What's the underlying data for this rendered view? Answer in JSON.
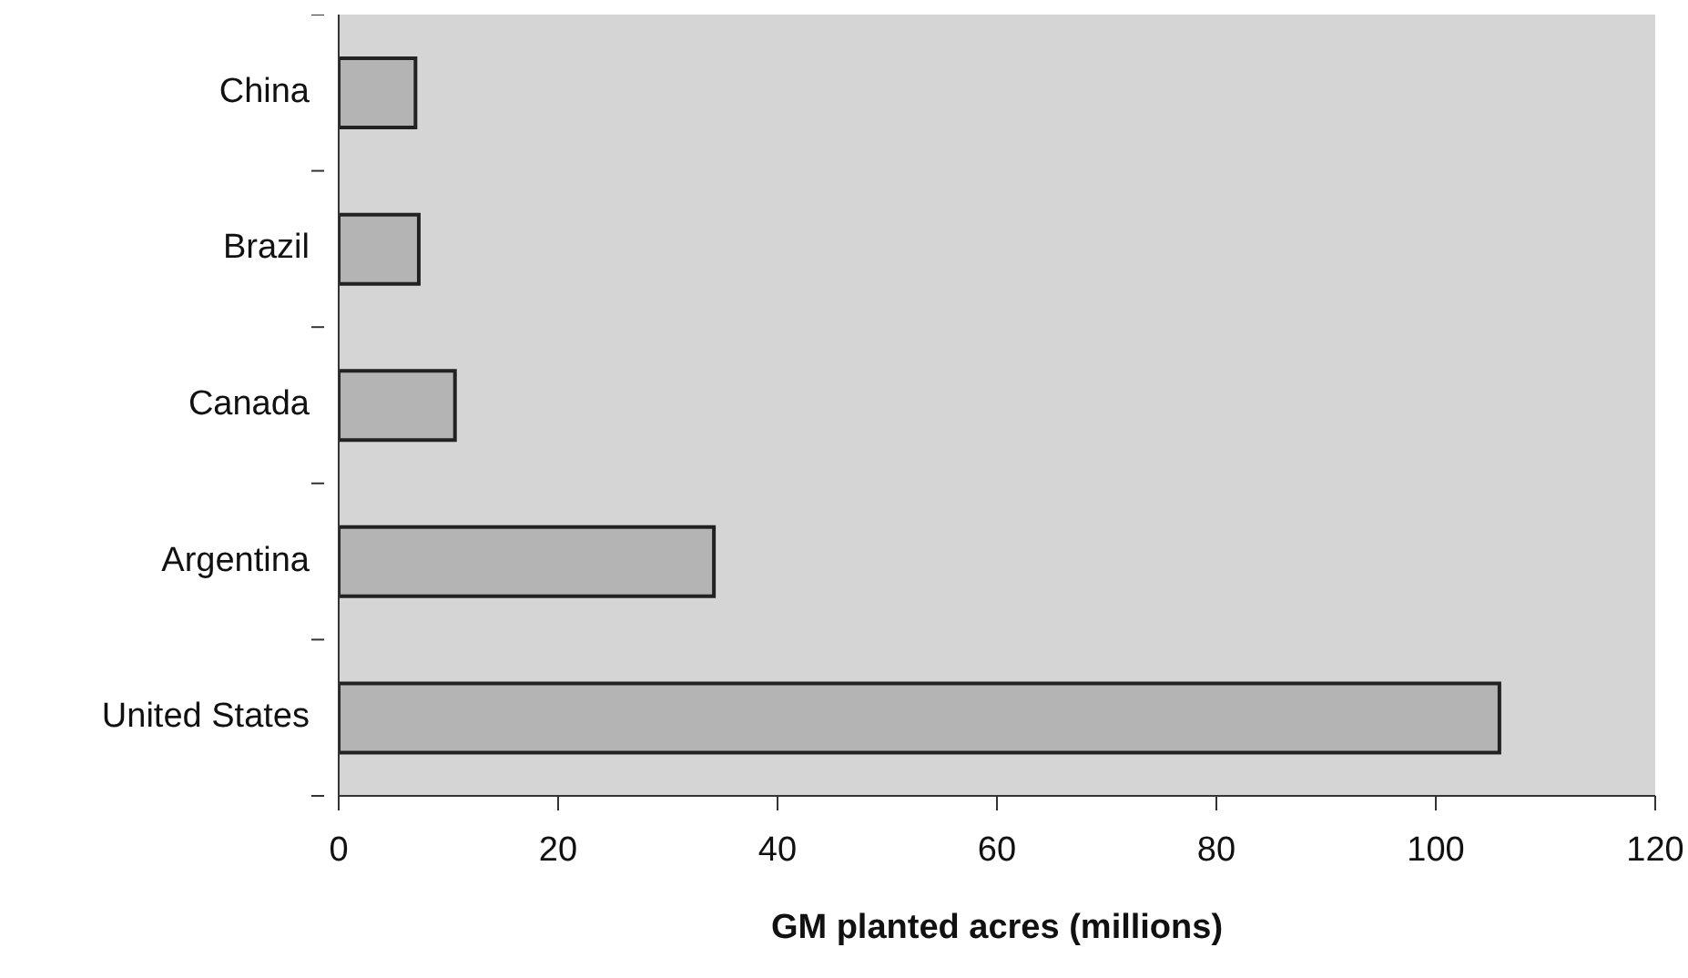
{
  "chart_data": {
    "type": "bar",
    "orientation": "horizontal",
    "xlabel": "GM planted acres (millions)",
    "categories": [
      "China",
      "Brazil",
      "Canada",
      "Argentina",
      "United States"
    ],
    "values": [
      7,
      7.3,
      10.6,
      34.2,
      105.8
    ],
    "color": "#b4b4b4",
    "xlim": [
      0,
      120
    ],
    "xticks": [
      0,
      20,
      40,
      60,
      80,
      100,
      120
    ],
    "grid": false
  }
}
